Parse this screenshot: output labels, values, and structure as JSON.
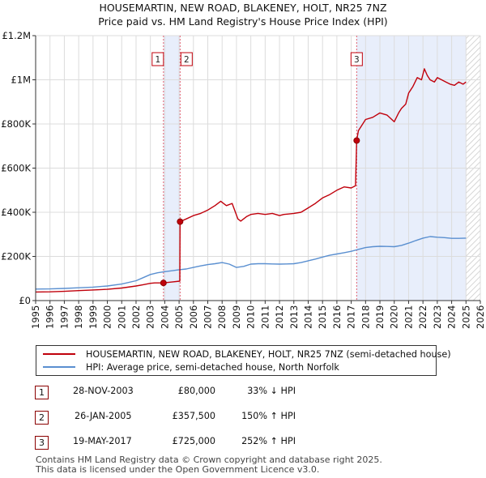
{
  "chart_data": {
    "type": "line",
    "title": "HOUSEMARTIN, NEW ROAD, BLAKENEY, HOLT, NR25 7NZ",
    "subtitle": "Price paid vs. HM Land Registry's House Price Index (HPI)",
    "xlabel": "",
    "ylabel": "",
    "xlim": [
      1995,
      2026
    ],
    "ylim": [
      0,
      1200000
    ],
    "x_ticks": [
      1995,
      1996,
      1997,
      1998,
      1999,
      2000,
      2001,
      2002,
      2003,
      2004,
      2005,
      2006,
      2007,
      2008,
      2009,
      2010,
      2011,
      2012,
      2013,
      2014,
      2015,
      2016,
      2017,
      2018,
      2019,
      2020,
      2021,
      2022,
      2023,
      2024,
      2025,
      2026
    ],
    "x_tick_labels": [
      "1995",
      "1996",
      "1997",
      "1998",
      "1999",
      "2000",
      "2001",
      "2002",
      "2003",
      "2004",
      "2005",
      "2006",
      "2007",
      "2008",
      "2009",
      "2010",
      "2011",
      "2012",
      "2013",
      "2014",
      "2015",
      "2016",
      "2017",
      "2018",
      "2019",
      "2020",
      "2021",
      "2022",
      "2023",
      "2024",
      "2025",
      "2026"
    ],
    "y_ticks": [
      0,
      200000,
      400000,
      600000,
      800000,
      1000000,
      1200000
    ],
    "y_tick_labels": [
      "£0",
      "£200K",
      "£400K",
      "£600K",
      "£800K",
      "£1M",
      "£1.2M"
    ],
    "grid": true,
    "series": [
      {
        "name": "HOUSEMARTIN, NEW ROAD, BLAKENEY, HOLT, NR25 7NZ (semi-detached house)",
        "color": "#c0000b",
        "x": [
          1995.0,
          1996.0,
          1997.0,
          1998.0,
          1999.0,
          2000.0,
          2001.0,
          2002.0,
          2002.5,
          2003.0,
          2003.3,
          2003.9,
          2004.5,
          2005.05,
          2005.07,
          2005.5,
          2006.0,
          2006.5,
          2007.0,
          2007.5,
          2007.9,
          2008.3,
          2008.7,
          2009.1,
          2009.3,
          2009.7,
          2010.0,
          2010.5,
          2011.0,
          2011.5,
          2012.0,
          2012.3,
          2012.6,
          2013.0,
          2013.5,
          2014.0,
          2014.5,
          2015.0,
          2015.5,
          2016.0,
          2016.5,
          2017.0,
          2017.3,
          2017.38,
          2017.5,
          2017.8,
          2018.0,
          2018.5,
          2019.0,
          2019.5,
          2020.0,
          2020.3,
          2020.5,
          2020.8,
          2021.0,
          2021.3,
          2021.6,
          2021.9,
          2022.1,
          2022.3,
          2022.5,
          2022.8,
          2023.0,
          2023.3,
          2023.6,
          2023.9,
          2024.2,
          2024.5,
          2024.8,
          2025.0
        ],
        "values": [
          39000,
          39500,
          42000,
          45000,
          48000,
          51000,
          57000,
          66000,
          72000,
          78000,
          80000,
          80000,
          84000,
          88000,
          357500,
          370000,
          385000,
          395000,
          410000,
          430000,
          450000,
          430000,
          440000,
          370000,
          360000,
          380000,
          390000,
          395000,
          390000,
          395000,
          385000,
          390000,
          392000,
          395000,
          400000,
          420000,
          440000,
          465000,
          480000,
          500000,
          515000,
          510000,
          520000,
          725000,
          770000,
          800000,
          820000,
          830000,
          850000,
          840000,
          810000,
          850000,
          870000,
          890000,
          940000,
          970000,
          1010000,
          1000000,
          1050000,
          1020000,
          1000000,
          990000,
          1010000,
          1000000,
          990000,
          980000,
          975000,
          990000,
          980000,
          990000
        ]
      },
      {
        "name": "HPI: Average price, semi-detached house, North Norfolk",
        "color": "#5a8fd0",
        "x": [
          1995.0,
          1996.0,
          1997.0,
          1998.0,
          1999.0,
          2000.0,
          2001.0,
          2002.0,
          2002.5,
          2003.0,
          2003.5,
          2004.0,
          2004.5,
          2005.0,
          2005.5,
          2006.0,
          2006.5,
          2007.0,
          2007.5,
          2008.0,
          2008.5,
          2009.0,
          2009.5,
          2010.0,
          2010.5,
          2011.0,
          2011.5,
          2012.0,
          2012.5,
          2013.0,
          2013.5,
          2014.0,
          2014.5,
          2015.0,
          2015.5,
          2016.0,
          2016.5,
          2017.0,
          2017.5,
          2018.0,
          2018.5,
          2019.0,
          2019.5,
          2020.0,
          2020.5,
          2021.0,
          2021.5,
          2022.0,
          2022.5,
          2023.0,
          2023.5,
          2024.0,
          2024.5,
          2025.0
        ],
        "values": [
          52000,
          53000,
          55000,
          58000,
          61000,
          66000,
          75000,
          90000,
          104000,
          118000,
          126000,
          131000,
          135000,
          140000,
          143000,
          150000,
          157000,
          163000,
          167000,
          172000,
          165000,
          150000,
          155000,
          165000,
          167000,
          167000,
          166000,
          165000,
          166000,
          167000,
          172000,
          180000,
          188000,
          197000,
          205000,
          211000,
          217000,
          223000,
          232000,
          240000,
          244000,
          246000,
          245000,
          244000,
          250000,
          260000,
          272000,
          283000,
          290000,
          287000,
          285000,
          282000,
          282000,
          283000
        ]
      }
    ],
    "sales": [
      {
        "num": "1",
        "x": 2003.91,
        "price": 80000
      },
      {
        "num": "2",
        "x": 2005.07,
        "price": 357500
      },
      {
        "num": "3",
        "x": 2017.38,
        "price": 725000
      }
    ],
    "forecast_from": 2025.0
  },
  "legend": {
    "property": "HOUSEMARTIN, NEW ROAD, BLAKENEY, HOLT, NR25 7NZ (semi-detached house)",
    "hpi": "HPI: Average price, semi-detached house, North Norfolk"
  },
  "table": [
    {
      "num": "1",
      "date": "28-NOV-2003",
      "price": "£80,000",
      "hpi": "33% ↓ HPI"
    },
    {
      "num": "2",
      "date": "26-JAN-2005",
      "price": "£357,500",
      "hpi": "150% ↑ HPI"
    },
    {
      "num": "3",
      "date": "19-MAY-2017",
      "price": "£725,000",
      "hpi": "252% ↑ HPI"
    }
  ],
  "footer": {
    "line1": "Contains HM Land Registry data © Crown copyright and database right 2025.",
    "line2": "This data is licensed under the Open Government Licence v3.0."
  },
  "colors": {
    "property": "#c0000b",
    "hpi": "#5a8fd0",
    "shade": "#e8eefb"
  }
}
